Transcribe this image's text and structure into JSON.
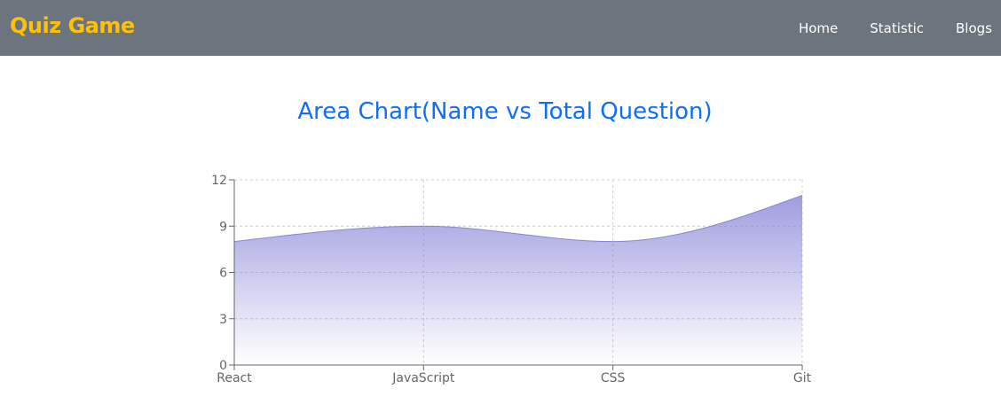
{
  "navbar": {
    "brand": "Quiz Game",
    "links": [
      "Home",
      "Statistic",
      "Blogs"
    ]
  },
  "colors": {
    "navbar_bg": "#6c757d",
    "brand": "#ffc107",
    "title": "#0d6efd",
    "area_fill": "#8884d8",
    "area_stroke": "#8884d8"
  },
  "chart_data": {
    "type": "area",
    "title": "Area Chart(Name vs Total Question)",
    "categories": [
      "React",
      "JavaScript",
      "CSS",
      "Git"
    ],
    "series": [
      {
        "values": [
          8,
          9,
          8,
          11
        ]
      }
    ],
    "ylim": [
      0,
      12
    ],
    "yticks": [
      "0",
      "3",
      "6",
      "9",
      "12"
    ],
    "grid": true,
    "curve": "monotone",
    "fill": "gradient"
  }
}
